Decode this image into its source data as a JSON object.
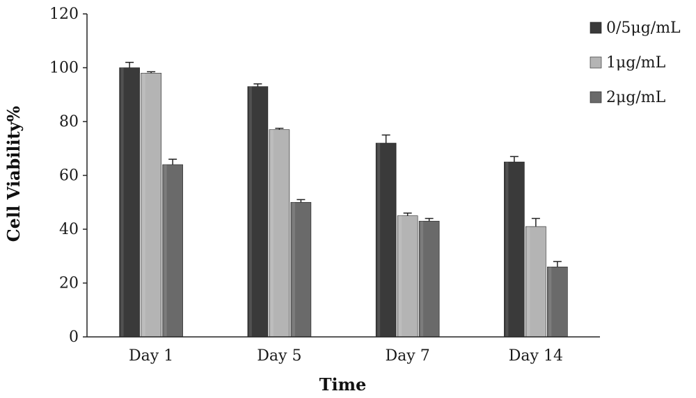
{
  "chart_data": {
    "type": "bar",
    "categories": [
      "Day 1",
      "Day 5",
      "Day 7",
      "Day 14"
    ],
    "series": [
      {
        "name": "0/5μg/mL",
        "values": [
          100,
          93,
          72,
          65
        ],
        "errors": [
          2,
          1,
          3,
          2
        ],
        "color": "#3a3a3a"
      },
      {
        "name": "1μg/mL",
        "values": [
          98,
          77,
          45,
          41
        ],
        "errors": [
          0.5,
          0.5,
          1,
          3
        ],
        "color": "#b4b4b4"
      },
      {
        "name": "2μg/mL",
        "values": [
          64,
          50,
          43,
          26
        ],
        "errors": [
          2,
          1,
          1,
          2
        ],
        "color": "#6a6a6a"
      }
    ],
    "xlabel": "Time",
    "ylabel": "Cell Viability%",
    "ylim": [
      0,
      120
    ],
    "yticks": [
      0,
      20,
      40,
      60,
      80,
      100,
      120
    ],
    "legend_position": "top-right",
    "grid": false
  }
}
